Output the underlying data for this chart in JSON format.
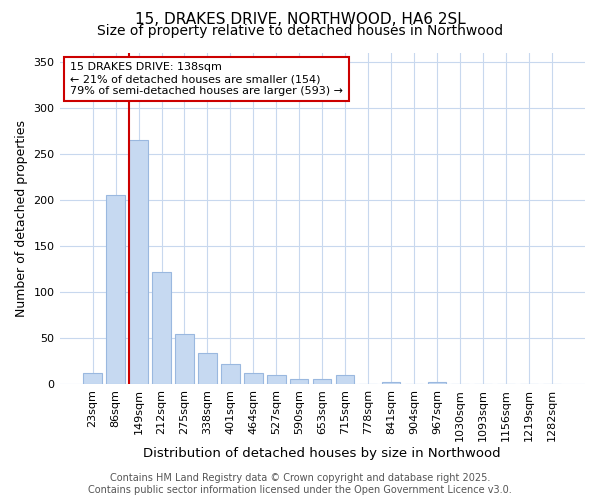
{
  "title1": "15, DRAKES DRIVE, NORTHWOOD, HA6 2SL",
  "title2": "Size of property relative to detached houses in Northwood",
  "xlabel": "Distribution of detached houses by size in Northwood",
  "ylabel": "Number of detached properties",
  "categories": [
    "23sqm",
    "86sqm",
    "149sqm",
    "212sqm",
    "275sqm",
    "338sqm",
    "401sqm",
    "464sqm",
    "527sqm",
    "590sqm",
    "653sqm",
    "715sqm",
    "778sqm",
    "841sqm",
    "904sqm",
    "967sqm",
    "1030sqm",
    "1093sqm",
    "1156sqm",
    "1219sqm",
    "1282sqm"
  ],
  "values": [
    12,
    205,
    265,
    122,
    55,
    34,
    22,
    12,
    10,
    6,
    6,
    10,
    0,
    3,
    0,
    3,
    0,
    0,
    0,
    0,
    1
  ],
  "bar_color": "#c6d9f1",
  "bar_edge_color": "#9ab8df",
  "vline_x_index": 2,
  "vline_color": "#cc0000",
  "ylim": [
    0,
    360
  ],
  "yticks": [
    0,
    50,
    100,
    150,
    200,
    250,
    300,
    350
  ],
  "annotation_text": "15 DRAKES DRIVE: 138sqm\n← 21% of detached houses are smaller (154)\n79% of semi-detached houses are larger (593) →",
  "annotation_box_facecolor": "#ffffff",
  "annotation_box_edgecolor": "#cc0000",
  "footer1": "Contains HM Land Registry data © Crown copyright and database right 2025.",
  "footer2": "Contains public sector information licensed under the Open Government Licence v3.0.",
  "bg_color": "#ffffff",
  "plot_bg_color": "#ffffff",
  "grid_color": "#c8d8ee",
  "title_fontsize": 11,
  "subtitle_fontsize": 10,
  "tick_fontsize": 8,
  "ylabel_fontsize": 9,
  "xlabel_fontsize": 9.5,
  "footer_fontsize": 7,
  "annotation_fontsize": 8
}
